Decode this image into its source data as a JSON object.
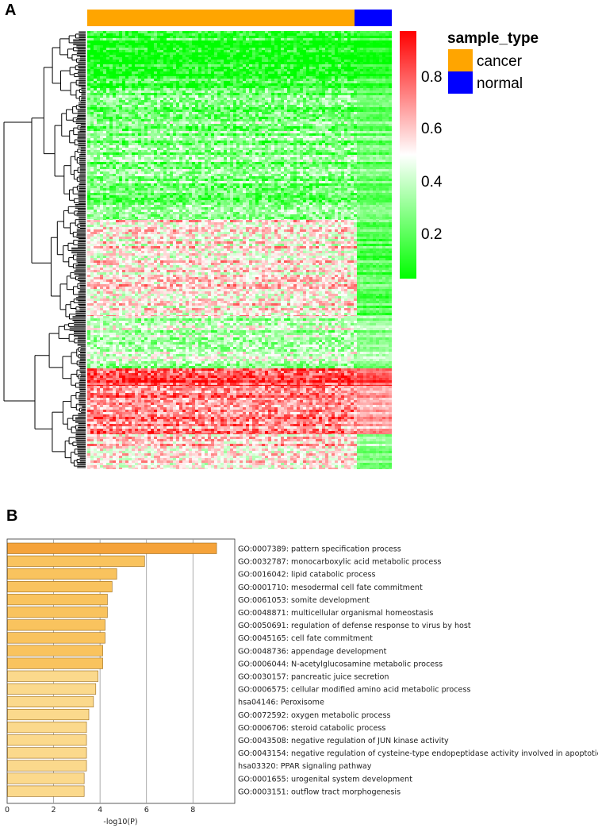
{
  "chart_data": [
    {
      "panel": "A",
      "type": "heatmap",
      "title": "",
      "annotation": {
        "title": "sample_type",
        "groups": [
          {
            "name": "cancer",
            "color": "#FFA500",
            "fraction": 0.877
          },
          {
            "name": "normal",
            "color": "#0000FF",
            "fraction": 0.123
          }
        ]
      },
      "colorbar": {
        "ticks": [
          "0.8",
          "0.6",
          "0.4",
          "0.2"
        ],
        "tick_values": [
          0.8,
          0.6,
          0.4,
          0.2
        ],
        "range": [
          0.02,
          0.92
        ],
        "colors": [
          "#00FF00",
          "#FFFFFF",
          "#FF0000"
        ]
      },
      "row_blocks": [
        {
          "fraction": 0.13,
          "cancer_mean": 0.08,
          "normal_mean": 0.1
        },
        {
          "fraction": 0.3,
          "cancer_mean": 0.26,
          "normal_mean": 0.22
        },
        {
          "fraction": 0.22,
          "cancer_mean": 0.55,
          "normal_mean": 0.18
        },
        {
          "fraction": 0.12,
          "cancer_mean": 0.36,
          "normal_mean": 0.3
        },
        {
          "fraction": 0.04,
          "cancer_mean": 0.9,
          "normal_mean": 0.88
        },
        {
          "fraction": 0.11,
          "cancer_mean": 0.72,
          "normal_mean": 0.66
        },
        {
          "fraction": 0.08,
          "cancer_mean": 0.6,
          "normal_mean": 0.3
        }
      ]
    },
    {
      "panel": "B",
      "type": "bar",
      "orientation": "horizontal",
      "xlabel": "-log10(P)",
      "xlim": [
        0,
        9.8
      ],
      "xticks": [
        "0",
        "2",
        "4",
        "6",
        "8"
      ],
      "xtick_values": [
        0,
        2,
        4,
        6,
        8
      ],
      "categories": [
        "GO:0007389: pattern specification process",
        "GO:0032787: monocarboxylic acid metabolic process",
        "GO:0016042: lipid catabolic process",
        "GO:0001710: mesodermal cell fate commitment",
        "GO:0061053: somite development",
        "GO:0048871: multicellular organismal homeostasis",
        "GO:0050691: regulation of defense response to virus by host",
        "GO:0045165: cell fate commitment",
        "GO:0048736: appendage development",
        "GO:0006044: N-acetylglucosamine metabolic process",
        "GO:0030157: pancreatic juice secretion",
        "GO:0006575: cellular modified amino acid metabolic process",
        "hsa04146: Peroxisome",
        "GO:0072592: oxygen metabolic process",
        "GO:0006706: steroid catabolic process",
        "GO:0043508: negative regulation of JUN kinase activity",
        "GO:0043154: negative regulation of cysteine-type endopeptidase activity involved in apoptotic process",
        "hsa03320: PPAR signaling pathway",
        "GO:0001655: urogenital system development",
        "GO:0003151: outflow tract morphogenesis"
      ],
      "values": [
        9.0,
        5.9,
        4.7,
        4.5,
        4.3,
        4.3,
        4.2,
        4.2,
        4.1,
        4.1,
        3.9,
        3.8,
        3.7,
        3.5,
        3.4,
        3.4,
        3.4,
        3.4,
        3.3,
        3.3
      ],
      "bar_colors": [
        "#F5A33A",
        "#F9C35E",
        "#F9C35E",
        "#F9C35E",
        "#F9C35E",
        "#F9C35E",
        "#F9C35E",
        "#F9C35E",
        "#F9C35E",
        "#F9C35E",
        "#FBD98C",
        "#FBD98C",
        "#FBD98C",
        "#FBD98C",
        "#FBD98C",
        "#FBD98C",
        "#FBD98C",
        "#FBD98C",
        "#FBD98C",
        "#FBD98C"
      ]
    }
  ],
  "labels": {
    "panel_a": "A",
    "panel_b": "B"
  }
}
